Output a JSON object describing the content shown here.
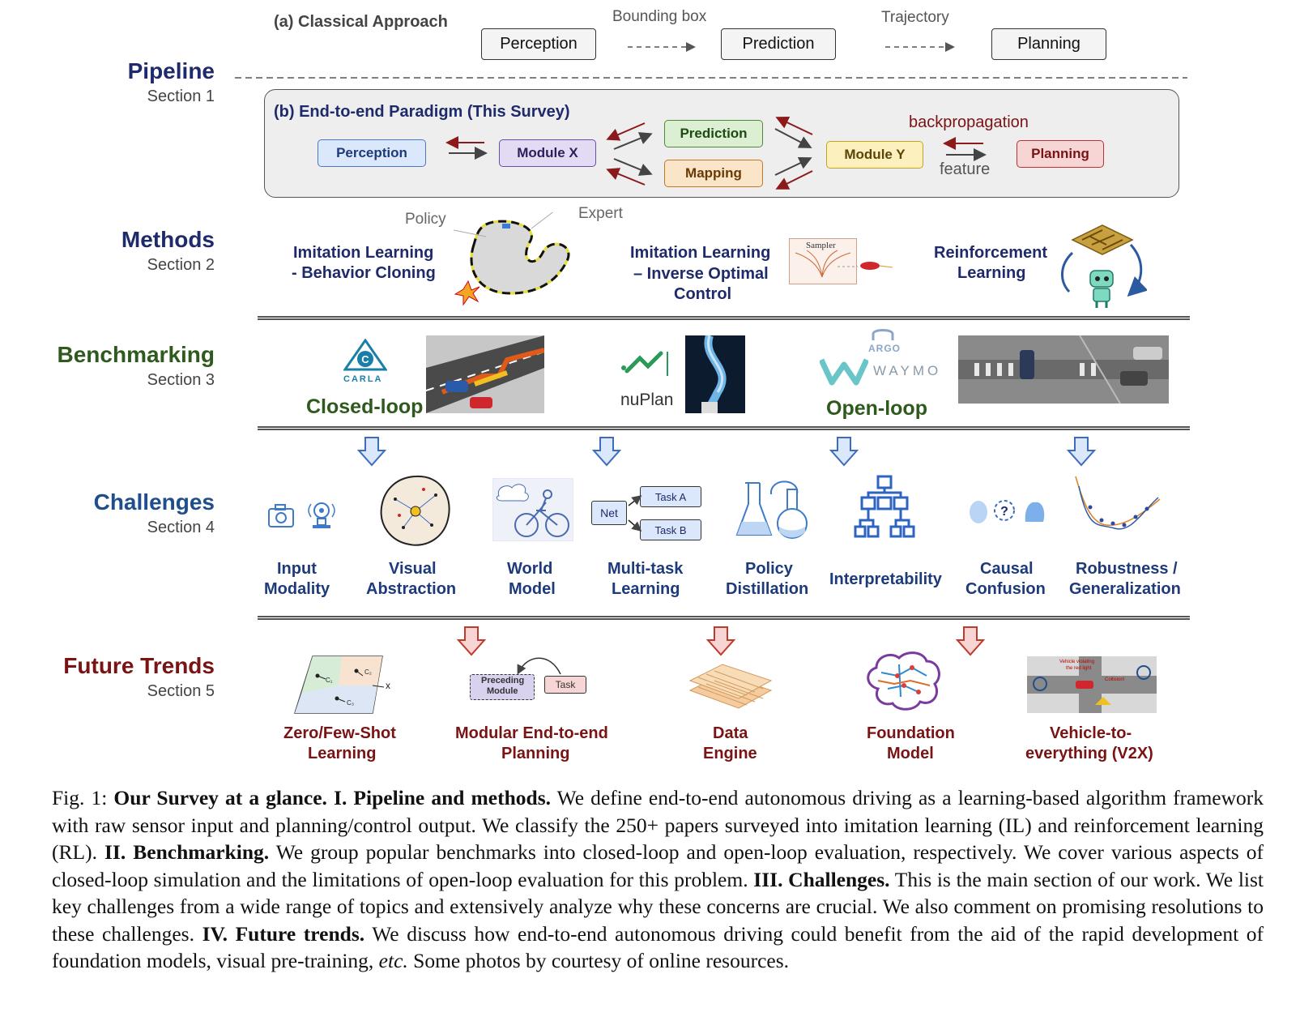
{
  "colors": {
    "navy": "#1f2a6b",
    "green_title": "#2f5a1e",
    "blue_title": "#1f4e8c",
    "maroon": "#7a1313",
    "perception_fill": "#dbe7fb",
    "perception_stroke": "#4a78c8",
    "modulex_fill": "#e3dbf3",
    "modulex_stroke": "#6a4fa8",
    "prediction_fill": "#dcefd2",
    "prediction_stroke": "#4f8a3a",
    "mapping_fill": "#fbe5c9",
    "mapping_stroke": "#c07a22",
    "moduley_fill": "#fdf0bf",
    "moduley_stroke": "#c9a21c",
    "planning_fill": "#f8d5d5",
    "planning_stroke": "#b83232",
    "arrow_dark": "#8b1a1a"
  },
  "pipeline": {
    "title": "Pipeline",
    "section": "Section 1",
    "classical": {
      "label": "(a) Classical Approach",
      "boxes": [
        "Perception",
        "Prediction",
        "Planning"
      ],
      "edge_labels": [
        "Bounding box",
        "Trajectory"
      ]
    },
    "e2e": {
      "label": "(b) End-to-end Paradigm (This Survey)",
      "perception": "Perception",
      "module_x": "Module X",
      "prediction": "Prediction",
      "mapping": "Mapping",
      "module_y": "Module Y",
      "planning": "Planning",
      "backprop": "backpropagation",
      "feature": "feature"
    }
  },
  "methods": {
    "title": "Methods",
    "section": "Section 2",
    "il_bc": [
      "Imitation Learning",
      "- Behavior Cloning"
    ],
    "policy_label": "Policy",
    "expert_label": "Expert",
    "il_ioc": [
      "Imitation Learning",
      "– Inverse Optimal",
      "Control"
    ],
    "sampler_label": "Sampler",
    "rl": [
      "Reinforcement",
      "Learning"
    ]
  },
  "benchmarking": {
    "title": "Benchmarking",
    "section": "Section 3",
    "carla_logo": "CARLA",
    "closed_loop": "Closed-loop",
    "nuplan": "nuPlan",
    "argo_logo": "ARGO",
    "waymo_logo": "WAYMO",
    "open_loop": "Open-loop"
  },
  "challenges": {
    "title": "Challenges",
    "section": "Section 4",
    "items": [
      [
        "Input",
        "Modality"
      ],
      [
        "Visual",
        "Abstraction"
      ],
      [
        "World",
        "Model"
      ],
      [
        "Multi-task",
        "Learning"
      ],
      [
        "Policy",
        "Distillation"
      ],
      [
        "Interpretability"
      ],
      [
        "Causal",
        "Confusion"
      ],
      [
        "Robustness /",
        "Generalization"
      ]
    ],
    "net_label": "Net",
    "task_a": "Task A",
    "task_b": "Task B"
  },
  "future": {
    "title": "Future Trends",
    "section": "Section 5",
    "items": [
      [
        "Zero/Few-Shot",
        "Learning"
      ],
      [
        "Modular End-to-end",
        "Planning"
      ],
      [
        "Data",
        "Engine"
      ],
      [
        "Foundation",
        "Model"
      ],
      [
        "Vehicle-to-",
        "everything (V2X)"
      ]
    ],
    "preceding_module": [
      "Preceding",
      "Module"
    ],
    "task_label": "Task",
    "x_label": "x",
    "c_labels": [
      "C₁",
      "C₂",
      "C₃"
    ],
    "v2x_text": [
      "Vehicle violating",
      "the red light",
      "Collision!"
    ]
  },
  "caption": {
    "fig": "Fig. 1:",
    "t1": "Our Survey at a glance. I. Pipeline and methods.",
    "p1": " We define end-to-end autonomous driving as a learning-based algorithm framework with raw sensor input and planning/control output. We classify the 250+ papers surveyed into imitation learning (IL) and reinforcement learning (RL). ",
    "t2": "II. Benchmarking.",
    "p2": " We group popular benchmarks into closed-loop and open-loop evaluation, respectively. We cover various aspects of closed-loop simulation and the limitations of open-loop evaluation for this problem. ",
    "t3": "III. Challenges.",
    "p3": " This is the main section of our work. We list key challenges from a wide range of topics and extensively analyze why these concerns are crucial. We also comment on promising resolutions to these challenges. ",
    "t4": "IV. Future trends.",
    "p4": " We discuss how end-to-end autonomous driving could benefit from the aid of the rapid development of foundation models, visual pre-training, ",
    "etc": "etc.",
    "p5": " Some photos by courtesy of online resources."
  }
}
